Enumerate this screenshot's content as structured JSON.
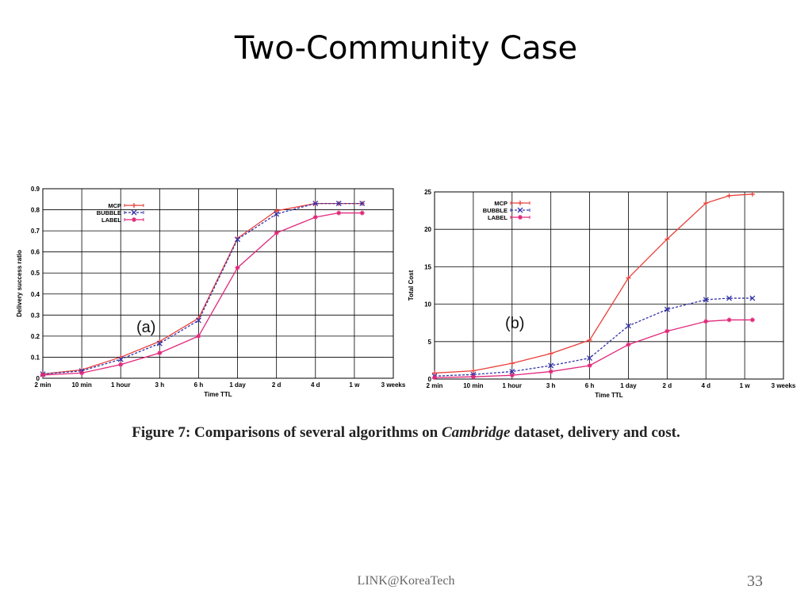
{
  "slide": {
    "title": "Two-Community Case",
    "caption_prefix": "Figure 7:  Comparisons of several algorithms on ",
    "caption_italic": "Cambridge",
    "caption_suffix": " dataset, delivery and cost.",
    "footer": "LINK@KoreaTech",
    "page_number": "33"
  },
  "chart_data": [
    {
      "type": "line",
      "panel_label": "(a)",
      "xlabel": "Time TTL",
      "ylabel": "Delivery success ratio",
      "categories": [
        "2 min",
        "10 min",
        "1 hour",
        "3 h",
        "6 h",
        "1 day",
        "2 d",
        "4 d",
        "1 w",
        "3 weeks"
      ],
      "x": [
        0,
        1,
        2,
        3,
        4,
        5,
        6,
        7,
        8,
        9
      ],
      "ylim": [
        0,
        0.9
      ],
      "yticks": [
        "0",
        "0.1",
        "0.2",
        "0.3",
        "0.4",
        "0.5",
        "0.6",
        "0.7",
        "0.8",
        "0.9"
      ],
      "grid": true,
      "legend_position": "top-left",
      "series": [
        {
          "name": "MCP",
          "color": "#e8403a",
          "dash": "solid",
          "marker": "plus",
          "x": [
            0,
            1,
            2,
            3,
            4,
            5,
            6,
            7,
            7.6,
            8.2
          ],
          "values": [
            0.02,
            0.04,
            0.1,
            0.175,
            0.285,
            0.665,
            0.795,
            0.83,
            0.83,
            0.83
          ]
        },
        {
          "name": "BUBBLE",
          "color": "#3333aa",
          "dash": "dashed",
          "marker": "x",
          "x": [
            0,
            1,
            2,
            3,
            4,
            5,
            6,
            7,
            7.6,
            8.2
          ],
          "values": [
            0.02,
            0.035,
            0.09,
            0.165,
            0.275,
            0.66,
            0.78,
            0.83,
            0.83,
            0.83
          ]
        },
        {
          "name": "LABEL",
          "color": "#e0287a",
          "dash": "solid",
          "marker": "star",
          "x": [
            0,
            1,
            2,
            3,
            4,
            5,
            6,
            7,
            7.6,
            8.2
          ],
          "values": [
            0.015,
            0.025,
            0.065,
            0.12,
            0.2,
            0.525,
            0.69,
            0.765,
            0.785,
            0.785
          ]
        }
      ]
    },
    {
      "type": "line",
      "panel_label": "(b)",
      "xlabel": "Time TTL",
      "ylabel": "Total Cost",
      "categories": [
        "2 min",
        "10 min",
        "1 hour",
        "3 h",
        "6 h",
        "1 day",
        "2 d",
        "4 d",
        "1 w",
        "3 weeks"
      ],
      "x": [
        0,
        1,
        2,
        3,
        4,
        5,
        6,
        7,
        8,
        9
      ],
      "ylim": [
        0,
        25
      ],
      "yticks": [
        "0",
        "5",
        "10",
        "15",
        "20",
        "25"
      ],
      "grid": true,
      "legend_position": "top-left",
      "series": [
        {
          "name": "MCP",
          "color": "#e8403a",
          "dash": "solid",
          "marker": "plus",
          "x": [
            0,
            1,
            2,
            3,
            4,
            5,
            6,
            7,
            7.6,
            8.2
          ],
          "values": [
            0.8,
            1.1,
            2.1,
            3.4,
            5.2,
            13.5,
            18.7,
            23.5,
            24.5,
            24.7
          ]
        },
        {
          "name": "BUBBLE",
          "color": "#3333aa",
          "dash": "dashed",
          "marker": "x",
          "x": [
            0,
            1,
            2,
            3,
            4,
            5,
            6,
            7,
            7.6,
            8.2
          ],
          "values": [
            0.4,
            0.6,
            1.0,
            1.8,
            2.8,
            7.1,
            9.3,
            10.6,
            10.8,
            10.8
          ]
        },
        {
          "name": "LABEL",
          "color": "#e0287a",
          "dash": "solid",
          "marker": "star",
          "x": [
            0,
            1,
            2,
            3,
            4,
            5,
            6,
            7,
            7.6,
            8.2
          ],
          "values": [
            0.2,
            0.3,
            0.5,
            1.0,
            1.8,
            4.6,
            6.4,
            7.7,
            7.9,
            7.9
          ]
        }
      ]
    }
  ]
}
